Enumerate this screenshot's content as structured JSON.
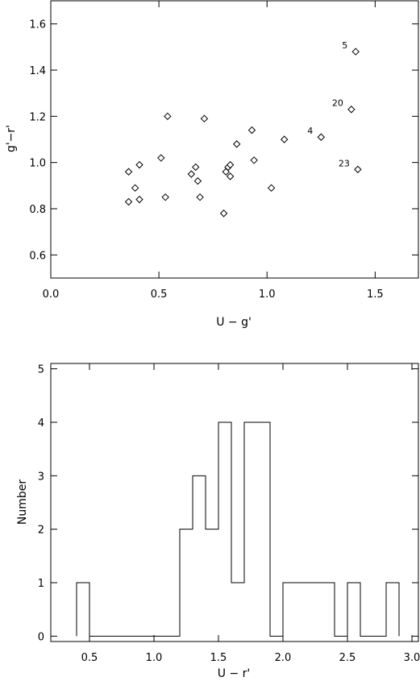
{
  "chart_data": [
    {
      "type": "scatter",
      "title": "",
      "xlabel": "U − g'",
      "ylabel": "g'−r'",
      "xlim": [
        0.0,
        1.7
      ],
      "ylim": [
        0.5,
        1.7
      ],
      "x_ticks": [
        "0.0",
        "0.5",
        "1.0",
        "1.5"
      ],
      "y_ticks": [
        "0.6",
        "0.8",
        "1.0",
        "1.2",
        "1.4",
        "1.6"
      ],
      "grid": false,
      "points": [
        {
          "x": 0.36,
          "y": 0.96
        },
        {
          "x": 0.36,
          "y": 0.83
        },
        {
          "x": 0.39,
          "y": 0.89
        },
        {
          "x": 0.41,
          "y": 0.99
        },
        {
          "x": 0.41,
          "y": 0.84
        },
        {
          "x": 0.51,
          "y": 1.02
        },
        {
          "x": 0.53,
          "y": 0.85
        },
        {
          "x": 0.54,
          "y": 1.2
        },
        {
          "x": 0.65,
          "y": 0.95
        },
        {
          "x": 0.67,
          "y": 0.98
        },
        {
          "x": 0.68,
          "y": 0.92
        },
        {
          "x": 0.69,
          "y": 0.85
        },
        {
          "x": 0.71,
          "y": 1.19
        },
        {
          "x": 0.8,
          "y": 0.78
        },
        {
          "x": 0.81,
          "y": 0.96
        },
        {
          "x": 0.82,
          "y": 0.98
        },
        {
          "x": 0.83,
          "y": 0.99
        },
        {
          "x": 0.83,
          "y": 0.94
        },
        {
          "x": 0.86,
          "y": 1.08
        },
        {
          "x": 0.93,
          "y": 1.14
        },
        {
          "x": 0.94,
          "y": 1.01
        },
        {
          "x": 1.02,
          "y": 0.89
        },
        {
          "x": 1.08,
          "y": 1.1
        },
        {
          "x": 1.25,
          "y": 1.11
        },
        {
          "x": 1.39,
          "y": 1.23
        },
        {
          "x": 1.41,
          "y": 1.48
        },
        {
          "x": 1.42,
          "y": 0.97
        }
      ],
      "annotations": [
        {
          "text": "5",
          "x": 1.41,
          "y": 1.48
        },
        {
          "text": "20",
          "x": 1.39,
          "y": 1.23
        },
        {
          "text": "4",
          "x": 1.25,
          "y": 1.11
        },
        {
          "text": "23",
          "x": 1.42,
          "y": 0.97
        }
      ]
    },
    {
      "type": "bar",
      "subtype": "step-histogram",
      "title": "",
      "xlabel": "U − r'",
      "ylabel": "Number",
      "xlim": [
        0.2,
        3.05
      ],
      "ylim": [
        -0.1,
        5.1
      ],
      "x_ticks": [
        "0.5",
        "1.0",
        "1.5",
        "2.0",
        "2.5",
        "3.0"
      ],
      "y_ticks": [
        "0",
        "1",
        "2",
        "3",
        "4",
        "5"
      ],
      "grid": false,
      "bin_width": 0.1,
      "bins": [
        {
          "x0": 0.4,
          "count": 1
        },
        {
          "x0": 0.5,
          "count": 0
        },
        {
          "x0": 0.6,
          "count": 0
        },
        {
          "x0": 0.7,
          "count": 0
        },
        {
          "x0": 0.8,
          "count": 0
        },
        {
          "x0": 0.9,
          "count": 0
        },
        {
          "x0": 1.0,
          "count": 0
        },
        {
          "x0": 1.1,
          "count": 0
        },
        {
          "x0": 1.2,
          "count": 2
        },
        {
          "x0": 1.3,
          "count": 3
        },
        {
          "x0": 1.4,
          "count": 2
        },
        {
          "x0": 1.5,
          "count": 4
        },
        {
          "x0": 1.6,
          "count": 1
        },
        {
          "x0": 1.7,
          "count": 4
        },
        {
          "x0": 1.8,
          "count": 4
        },
        {
          "x0": 1.9,
          "count": 0
        },
        {
          "x0": 2.0,
          "count": 1
        },
        {
          "x0": 2.1,
          "count": 1
        },
        {
          "x0": 2.2,
          "count": 1
        },
        {
          "x0": 2.3,
          "count": 1
        },
        {
          "x0": 2.4,
          "count": 0
        },
        {
          "x0": 2.5,
          "count": 1
        },
        {
          "x0": 2.6,
          "count": 0
        },
        {
          "x0": 2.7,
          "count": 0
        },
        {
          "x0": 2.8,
          "count": 1
        }
      ]
    }
  ]
}
